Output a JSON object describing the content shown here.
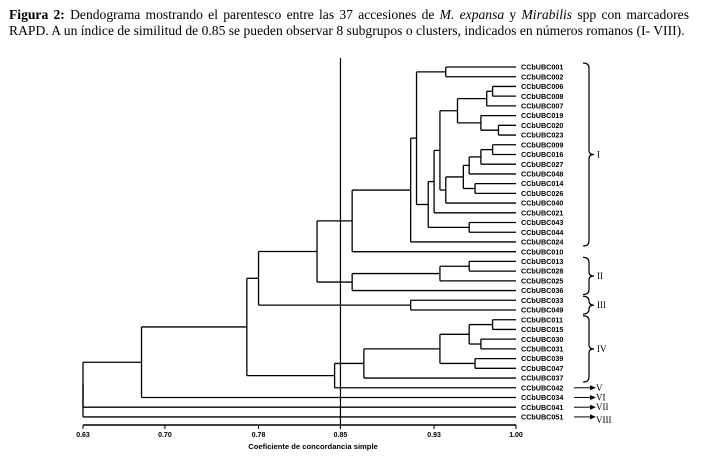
{
  "caption": {
    "label": "Figura 2:",
    "part1": " Dendograma mostrando el parentesco entre las 37 accesiones de ",
    "species1": "M. expansa",
    "part2": " y ",
    "species2": "Mirabilis",
    "part3": " spp con marcadores RAPD. A un índice de similitud de 0.85 se pueden observar 8 subgrupos o clusters, indicados en números romanos (I- VIII)."
  },
  "chart_data": {
    "type": "dendrogram",
    "xlabel": "Coeficiente de concordancia simple",
    "xlim": [
      0.63,
      1.0
    ],
    "xticks": [
      "0.63",
      "0.70",
      "0.78",
      "0.85",
      "0.93",
      "1.00"
    ],
    "cutoff": 0.85,
    "leaves": [
      "CCbUBC001",
      "CCbUBC002",
      "CCbUBC006",
      "CCbUBC008",
      "CCbUBC007",
      "CCbUBC019",
      "CCbUBC020",
      "CCbUBC023",
      "CCbUBC009",
      "CCbUBC016",
      "CCbUBC027",
      "CCbUBC048",
      "CCbUBC014",
      "CCbUBC026",
      "CCbUBC040",
      "CCbUBC021",
      "CCbUBC043",
      "CCbUBC044",
      "CCbUBC024",
      "CCbUBC010",
      "CCbUBC013",
      "CCbUBC028",
      "CCbUBC025",
      "CCbUBC036",
      "CCbUBC033",
      "CCbUBC049",
      "CCbUBC011",
      "CCbUBC015",
      "CCbUBC030",
      "CCbUBC031",
      "CCbUBC039",
      "CCbUBC047",
      "CCbUBC037",
      "CCbUBC042",
      "CCbUBC034",
      "CCbUBC041",
      "CCbUBC051"
    ],
    "merges": [
      {
        "a": "L0",
        "b": "L1",
        "h": 0.94,
        "id": "n0"
      },
      {
        "a": "L2",
        "b": "L3",
        "h": 0.98,
        "id": "n1"
      },
      {
        "a": "n1",
        "b": "L4",
        "h": 0.975,
        "id": "n2"
      },
      {
        "a": "L6",
        "b": "L7",
        "h": 0.985,
        "id": "n3"
      },
      {
        "a": "L5",
        "b": "n3",
        "h": 0.97,
        "id": "n4"
      },
      {
        "a": "n2",
        "b": "n4",
        "h": 0.95,
        "id": "n5"
      },
      {
        "a": "L8",
        "b": "L9",
        "h": 0.98,
        "id": "n6"
      },
      {
        "a": "n6",
        "b": "L10",
        "h": 0.97,
        "id": "n7"
      },
      {
        "a": "n7",
        "b": "L11",
        "h": 0.96,
        "id": "n8"
      },
      {
        "a": "L12",
        "b": "L13",
        "h": 0.965,
        "id": "n9"
      },
      {
        "a": "n8",
        "b": "n9",
        "h": 0.955,
        "id": "n10"
      },
      {
        "a": "n10",
        "b": "L14",
        "h": 0.94,
        "id": "n11"
      },
      {
        "a": "n5",
        "b": "n11",
        "h": 0.935,
        "id": "n12"
      },
      {
        "a": "n12",
        "b": "L15",
        "h": 0.93,
        "id": "n13"
      },
      {
        "a": "L16",
        "b": "L17",
        "h": 0.96,
        "id": "n14"
      },
      {
        "a": "n13",
        "b": "n14",
        "h": 0.925,
        "id": "n15"
      },
      {
        "a": "n0",
        "b": "n15",
        "h": 0.915,
        "id": "n16"
      },
      {
        "a": "n16",
        "b": "L18",
        "h": 0.91,
        "id": "n17"
      },
      {
        "a": "n17",
        "b": "L19",
        "h": 0.86,
        "id": "n18"
      },
      {
        "a": "L20",
        "b": "L21",
        "h": 0.96,
        "id": "n19"
      },
      {
        "a": "n19",
        "b": "L22",
        "h": 0.935,
        "id": "n20"
      },
      {
        "a": "n20",
        "b": "L23",
        "h": 0.86,
        "id": "n21"
      },
      {
        "a": "n18",
        "b": "n21",
        "h": 0.83,
        "id": "n22"
      },
      {
        "a": "L24",
        "b": "L25",
        "h": 0.91,
        "id": "n23"
      },
      {
        "a": "n22",
        "b": "n23",
        "h": 0.78,
        "id": "n24"
      },
      {
        "a": "L26",
        "b": "L27",
        "h": 0.98,
        "id": "n25"
      },
      {
        "a": "L28",
        "b": "L29",
        "h": 0.97,
        "id": "n26"
      },
      {
        "a": "n25",
        "b": "n26",
        "h": 0.96,
        "id": "n27"
      },
      {
        "a": "L30",
        "b": "L31",
        "h": 0.965,
        "id": "n28"
      },
      {
        "a": "n27",
        "b": "n28",
        "h": 0.935,
        "id": "n29"
      },
      {
        "a": "n29",
        "b": "L32",
        "h": 0.87,
        "id": "n30"
      },
      {
        "a": "n30",
        "b": "L33",
        "h": 0.845,
        "id": "n31"
      },
      {
        "a": "n24",
        "b": "n31",
        "h": 0.77,
        "id": "n32"
      },
      {
        "a": "n32",
        "b": "L34",
        "h": 0.68,
        "id": "n33"
      },
      {
        "a": "n33",
        "b": "L35",
        "h": 0.63,
        "id": "n34"
      },
      {
        "a": "n34",
        "b": "L36",
        "h": 0.63,
        "id": "n35"
      }
    ],
    "groups": [
      {
        "label": "I",
        "from": 0,
        "to": 18,
        "mark": "brace"
      },
      {
        "label": "II",
        "from": 20,
        "to": 23,
        "mark": "brace"
      },
      {
        "label": "III",
        "from": 24,
        "to": 25,
        "mark": "brace"
      },
      {
        "label": "IV",
        "from": 26,
        "to": 32,
        "mark": "brace"
      },
      {
        "label": "V",
        "from": 33,
        "to": 33,
        "mark": "arrow"
      },
      {
        "label": "VI",
        "from": 34,
        "to": 34,
        "mark": "arrow"
      },
      {
        "label": "VII",
        "from": 35,
        "to": 35,
        "mark": "arrow"
      },
      {
        "label": "VIII",
        "from": 36,
        "to": 36,
        "mark": "arrow"
      }
    ]
  }
}
